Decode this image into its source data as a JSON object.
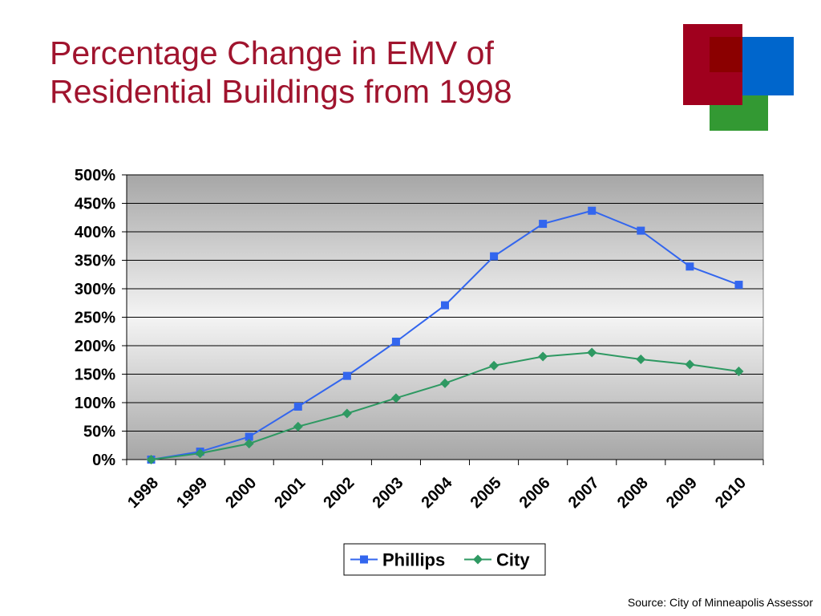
{
  "slide": {
    "title_line1": "Percentage Change in EMV of",
    "title_line2": "Residential Buildings from 1998",
    "source": "Source: City of Minneapolis Assessor"
  },
  "logo": {
    "colors": {
      "red": "#a0001e",
      "blue": "#0066cc",
      "green": "#339933",
      "overlap": "#8b0000"
    }
  },
  "colors": {
    "title": "#a0142e",
    "plot_bg_top": "#a6a6a6",
    "plot_bg_mid": "#f4f4f4",
    "phillips": "#3366ee",
    "city": "#2e9962"
  },
  "chart_data": {
    "type": "line",
    "categories": [
      "1998",
      "1999",
      "2000",
      "2001",
      "2002",
      "2003",
      "2004",
      "2005",
      "2006",
      "2007",
      "2008",
      "2009",
      "2010"
    ],
    "series": [
      {
        "name": "Phillips",
        "marker": "square",
        "values": [
          0,
          14,
          40,
          93,
          147,
          207,
          271,
          357,
          414,
          437,
          402,
          339,
          307
        ]
      },
      {
        "name": "City",
        "marker": "diamond",
        "values": [
          0,
          11,
          28,
          58,
          81,
          108,
          134,
          165,
          181,
          188,
          176,
          167,
          155
        ]
      }
    ],
    "y_ticks": [
      "0%",
      "50%",
      "100%",
      "150%",
      "200%",
      "250%",
      "300%",
      "350%",
      "400%",
      "450%",
      "500%"
    ],
    "ylim": [
      0,
      500
    ],
    "ystep": 50,
    "grid": true,
    "legend_position": "bottom"
  }
}
